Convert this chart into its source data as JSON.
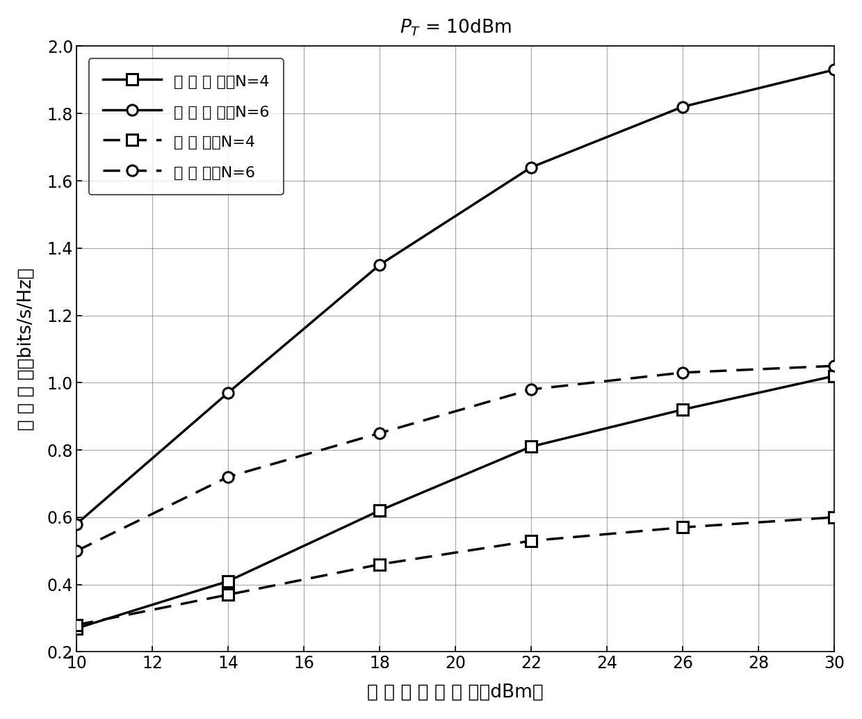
{
  "xlabel": "中间节点总功率（dBm）",
  "ylabel": "安全速率（bits/s/Hz）",
  "x": [
    10,
    14,
    18,
    22,
    26,
    30
  ],
  "joint_N4": [
    0.27,
    0.41,
    0.62,
    0.81,
    0.92,
    1.02
  ],
  "joint_N6": [
    0.58,
    0.97,
    1.35,
    1.64,
    1.82,
    1.93
  ],
  "relay_N4": [
    0.28,
    0.37,
    0.46,
    0.53,
    0.57,
    0.6
  ],
  "relay_N6": [
    0.5,
    0.72,
    0.85,
    0.98,
    1.03,
    1.05
  ],
  "xlim": [
    10,
    30
  ],
  "ylim": [
    0.2,
    2.0
  ],
  "xticks": [
    10,
    12,
    14,
    16,
    18,
    20,
    22,
    24,
    26,
    28,
    30
  ],
  "yticks": [
    0.2,
    0.4,
    0.6,
    0.8,
    1.0,
    1.2,
    1.4,
    1.6,
    1.8,
    2.0
  ],
  "legend_labels": [
    "联合策略，N=4",
    "联合策略，N=6",
    "仅中继，N=4",
    "仅中继，N=6"
  ],
  "background_color": "#ffffff",
  "grid_color": "#888888"
}
